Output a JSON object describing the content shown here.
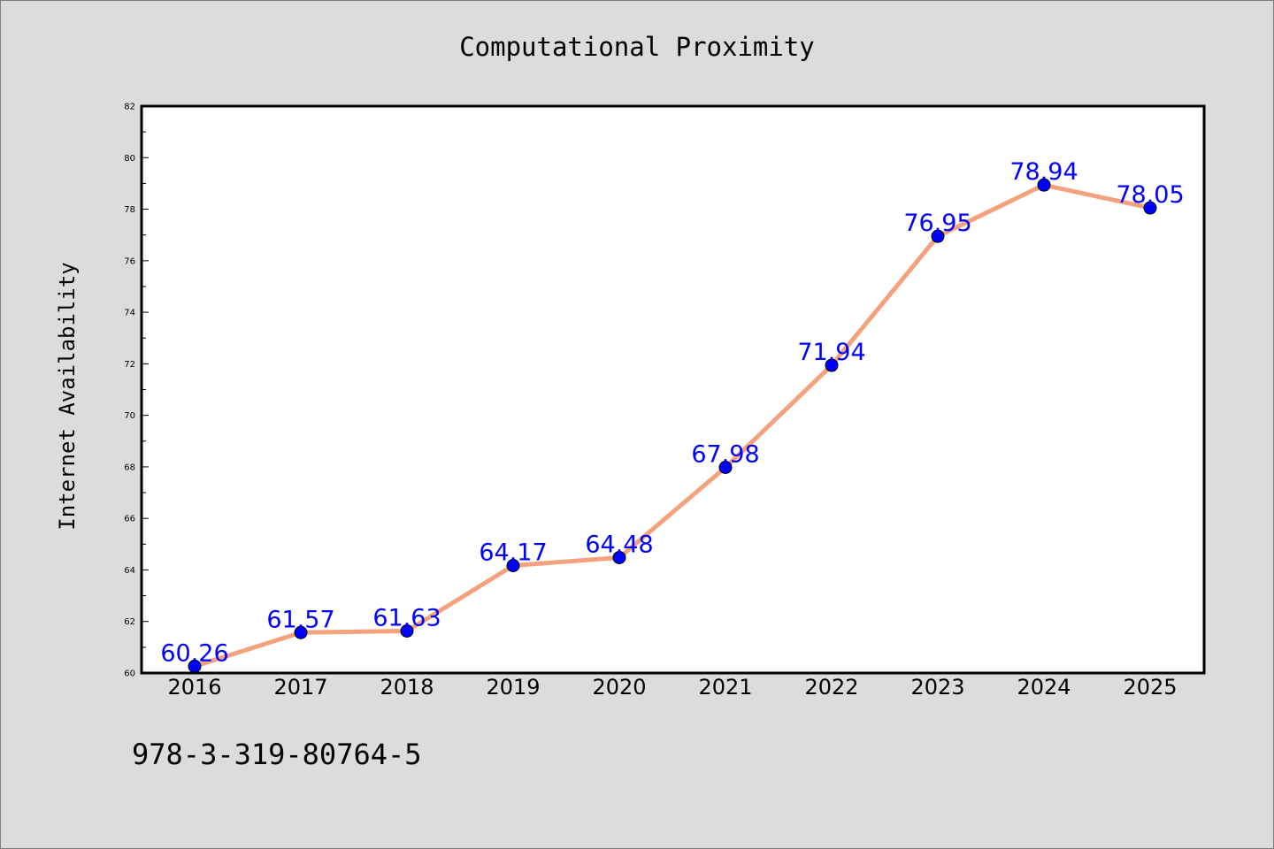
{
  "chart_data": {
    "type": "line",
    "title": "Computational Proximity",
    "xlabel": "",
    "ylabel": "Internet Availability",
    "categories": [
      "2016",
      "2017",
      "2018",
      "2019",
      "2020",
      "2021",
      "2022",
      "2023",
      "2024",
      "2025"
    ],
    "series": [
      {
        "values": [
          60.26,
          61.57,
          61.63,
          64.17,
          64.48,
          67.98,
          71.94,
          76.95,
          78.94,
          78.05
        ],
        "labels": [
          "60.26",
          "61.57",
          "61.63",
          "64.17",
          "64.48",
          "67.98",
          "71.94",
          "76.95",
          "78.94",
          "78.05"
        ],
        "line_color": "#f4a27e",
        "marker_color": "#0000ff"
      }
    ],
    "ylim": [
      60,
      82
    ],
    "yticks": [
      "60",
      "62",
      "64",
      "66",
      "68",
      "70",
      "72",
      "74",
      "76",
      "78",
      "80",
      "82"
    ],
    "grid": false,
    "legend": "none",
    "background_color": "#dcdcdc",
    "plot_background_color": "#ffffff"
  },
  "footer": {
    "isbn": "978-3-319-80764-5"
  }
}
